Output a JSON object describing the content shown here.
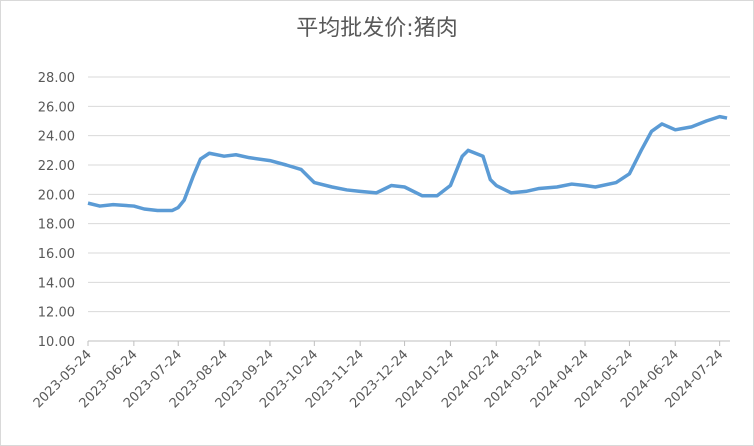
{
  "chart_data": {
    "type": "line",
    "title": "平均批发价:猪肉",
    "x": [
      "2023-05-24",
      "2023-06-01",
      "2023-06-10",
      "2023-06-24",
      "2023-07-01",
      "2023-07-10",
      "2023-07-20",
      "2023-07-24",
      "2023-07-28",
      "2023-08-03",
      "2023-08-08",
      "2023-08-14",
      "2023-08-24",
      "2023-09-01",
      "2023-09-10",
      "2023-09-24",
      "2023-10-05",
      "2023-10-15",
      "2023-10-20",
      "2023-10-24",
      "2023-11-05",
      "2023-11-15",
      "2023-11-24",
      "2023-12-05",
      "2023-12-15",
      "2023-12-24",
      "2024-01-05",
      "2024-01-15",
      "2024-01-24",
      "2024-02-01",
      "2024-02-05",
      "2024-02-15",
      "2024-02-20",
      "2024-02-24",
      "2024-03-05",
      "2024-03-15",
      "2024-03-24",
      "2024-04-05",
      "2024-04-15",
      "2024-04-24",
      "2024-05-01",
      "2024-05-15",
      "2024-05-24",
      "2024-06-01",
      "2024-06-08",
      "2024-06-15",
      "2024-06-24",
      "2024-07-05",
      "2024-07-15",
      "2024-07-24",
      "2024-07-29"
    ],
    "series": [
      {
        "name": "平均批发价:猪肉",
        "color": "#5b9bd5",
        "values": [
          19.4,
          19.2,
          19.3,
          19.2,
          19.0,
          18.9,
          18.9,
          19.1,
          19.6,
          21.2,
          22.4,
          22.8,
          22.6,
          22.7,
          22.5,
          22.3,
          22.0,
          21.7,
          21.2,
          20.8,
          20.5,
          20.3,
          20.2,
          20.1,
          20.6,
          20.5,
          19.9,
          19.9,
          20.6,
          22.6,
          23.0,
          22.6,
          21.0,
          20.6,
          20.1,
          20.2,
          20.4,
          20.5,
          20.7,
          20.6,
          20.5,
          20.8,
          21.4,
          23.0,
          24.3,
          24.8,
          24.4,
          24.6,
          25.0,
          25.3,
          25.2
        ]
      }
    ],
    "xlim": [
      "2023-05-24",
      "2024-07-31"
    ],
    "xticks": [
      "2023-05-24",
      "2023-06-24",
      "2023-07-24",
      "2023-08-24",
      "2023-09-24",
      "2023-10-24",
      "2023-11-24",
      "2023-12-24",
      "2024-01-24",
      "2024-02-24",
      "2024-03-24",
      "2024-04-24",
      "2024-05-24",
      "2024-06-24",
      "2024-07-24"
    ],
    "ylim": [
      10,
      28
    ],
    "yticks": [
      {
        "value": 10,
        "label": "10.00"
      },
      {
        "value": 12,
        "label": "12.00"
      },
      {
        "value": 14,
        "label": "14.00"
      },
      {
        "value": 16,
        "label": "16.00"
      },
      {
        "value": 18,
        "label": "18.00"
      },
      {
        "value": 20,
        "label": "20.00"
      },
      {
        "value": 22,
        "label": "22.00"
      },
      {
        "value": 24,
        "label": "24.00"
      },
      {
        "value": 26,
        "label": "26.00"
      },
      {
        "value": 28,
        "label": "28.00"
      }
    ],
    "grid": true
  }
}
